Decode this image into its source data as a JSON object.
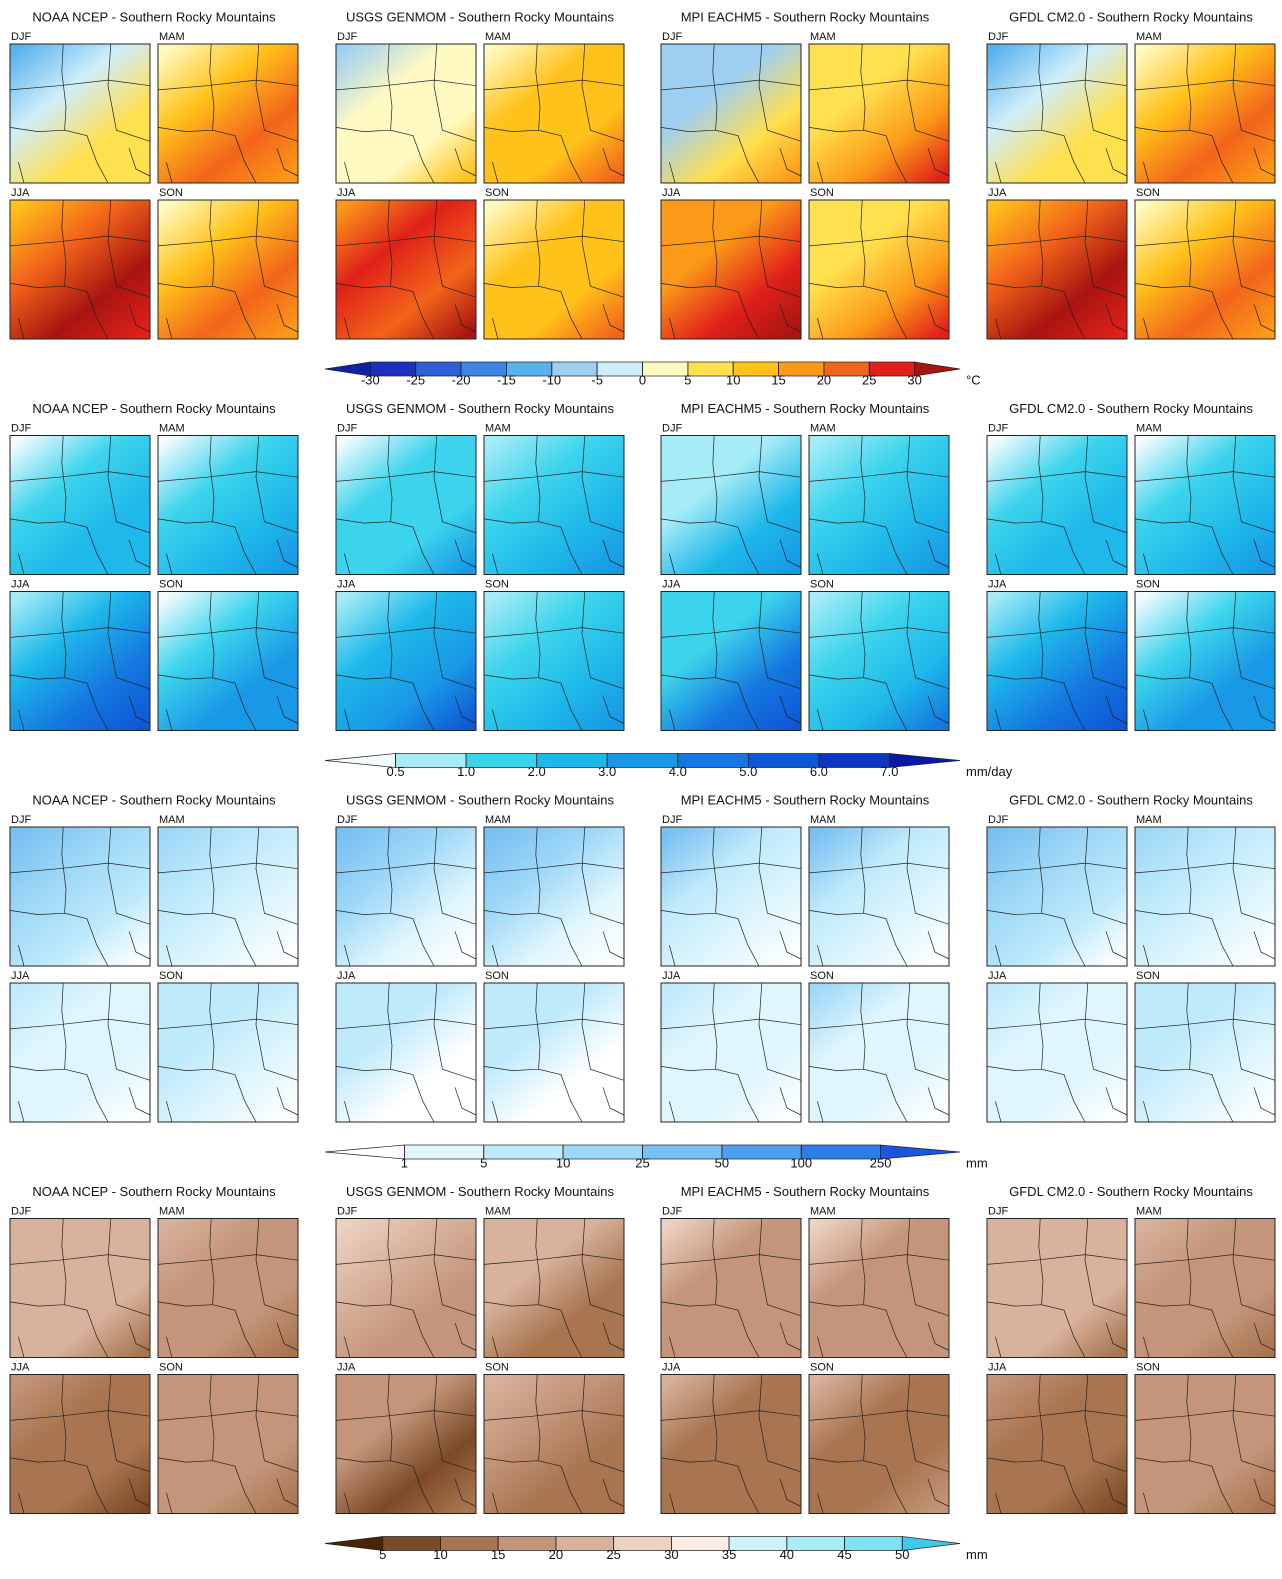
{
  "rows": [
    {
      "panels": [
        {
          "title": "NOAA NCEP - Southern Rocky Mountains",
          "seasons": [
            "DJF",
            "MAM",
            "JJA",
            "SON"
          ]
        },
        {
          "title": "USGS GENMOM - Southern Rocky Mountains",
          "seasons": [
            "DJF",
            "MAM",
            "JJA",
            "SON"
          ]
        },
        {
          "title": "MPI EACHM5 - Southern Rocky Mountains",
          "seasons": [
            "DJF",
            "MAM",
            "JJA",
            "SON"
          ]
        },
        {
          "title": "GFDL CM2.0 - Southern Rocky Mountains",
          "seasons": [
            "DJF",
            "MAM",
            "JJA",
            "SON"
          ]
        }
      ],
      "colorbar": {
        "ticks": [
          -30,
          -25,
          -20,
          -15,
          -10,
          -5,
          0,
          5,
          10,
          15,
          20,
          25,
          30
        ],
        "unit": "°C",
        "colors": [
          "#1020a8",
          "#1a2fc0",
          "#2f5fd8",
          "#3e86e6",
          "#58b2ee",
          "#9ecff2",
          "#cfeefa",
          "#fffac2",
          "#ffe04e",
          "#ffc21a",
          "#fb9a18",
          "#f2641a",
          "#e0201a",
          "#a81410"
        ]
      }
    },
    {
      "panels": [
        {
          "title": "NOAA NCEP - Southern Rocky Mountains",
          "seasons": [
            "DJF",
            "MAM",
            "JJA",
            "SON"
          ]
        },
        {
          "title": "USGS GENMOM - Southern Rocky Mountains",
          "seasons": [
            "DJF",
            "MAM",
            "JJA",
            "SON"
          ]
        },
        {
          "title": "MPI EACHM5 - Southern Rocky Mountains",
          "seasons": [
            "DJF",
            "MAM",
            "JJA",
            "SON"
          ]
        },
        {
          "title": "GFDL CM2.0 - Southern Rocky Mountains",
          "seasons": [
            "DJF",
            "MAM",
            "JJA",
            "SON"
          ]
        }
      ],
      "colorbar": {
        "ticks": [
          0.5,
          {
            "value": 1,
            "label": "1.0"
          },
          {
            "value": 2,
            "label": "2.0"
          },
          {
            "value": 3,
            "label": "3.0"
          },
          {
            "value": 4,
            "label": "4.0"
          },
          {
            "value": 5,
            "label": "5.0"
          },
          {
            "value": 6,
            "label": "6.0"
          },
          {
            "value": 7,
            "label": "7.0"
          }
        ],
        "unit": "mm/day",
        "colors": [
          "#f4fbfe",
          "#a6ecf6",
          "#3cd4ec",
          "#1eb8ea",
          "#1898e6",
          "#1478e0",
          "#0f58d4",
          "#0a36c0",
          "#0818a8"
        ]
      }
    },
    {
      "panels": [
        {
          "title": "NOAA NCEP - Southern Rocky Mountains",
          "seasons": [
            "DJF",
            "MAM",
            "JJA",
            "SON"
          ]
        },
        {
          "title": "USGS GENMOM - Southern Rocky Mountains",
          "seasons": [
            "DJF",
            "MAM",
            "JJA",
            "SON"
          ]
        },
        {
          "title": "MPI EACHM5 - Southern Rocky Mountains",
          "seasons": [
            "DJF",
            "MAM",
            "JJA",
            "SON"
          ]
        },
        {
          "title": "GFDL CM2.0 - Southern Rocky Mountains",
          "seasons": [
            "DJF",
            "MAM",
            "JJA",
            "SON"
          ]
        }
      ],
      "colorbar": {
        "ticks": [
          1,
          5,
          10,
          25,
          50,
          100,
          250
        ],
        "unit": "mm",
        "colors": [
          "#ffffff",
          "#e0f6fd",
          "#bfeafb",
          "#9ed8f7",
          "#78bff2",
          "#4f9ff0",
          "#2e7ce8",
          "#1c55e0"
        ]
      }
    },
    {
      "panels": [
        {
          "title": "NOAA NCEP - Southern Rocky Mountains",
          "seasons": [
            "DJF",
            "MAM",
            "JJA",
            "SON"
          ]
        },
        {
          "title": "USGS GENMOM - Southern Rocky Mountains",
          "seasons": [
            "DJF",
            "MAM",
            "JJA",
            "SON"
          ]
        },
        {
          "title": "MPI EACHM5 - Southern Rocky Mountains",
          "seasons": [
            "DJF",
            "MAM",
            "JJA",
            "SON"
          ]
        },
        {
          "title": "GFDL CM2.0 - Southern Rocky Mountains",
          "seasons": [
            "DJF",
            "MAM",
            "JJA",
            "SON"
          ]
        }
      ],
      "colorbar": {
        "ticks": [
          5,
          10,
          15,
          20,
          25,
          30,
          35,
          40,
          45,
          50
        ],
        "unit": "mm",
        "colors": [
          "#4a2408",
          "#7b4a26",
          "#a87550",
          "#c4957a",
          "#d8b29c",
          "#ecd2c2",
          "#fbece4",
          "#cdf3f8",
          "#a8ecf5",
          "#7fe2f2",
          "#40c8e8"
        ]
      }
    }
  ]
}
